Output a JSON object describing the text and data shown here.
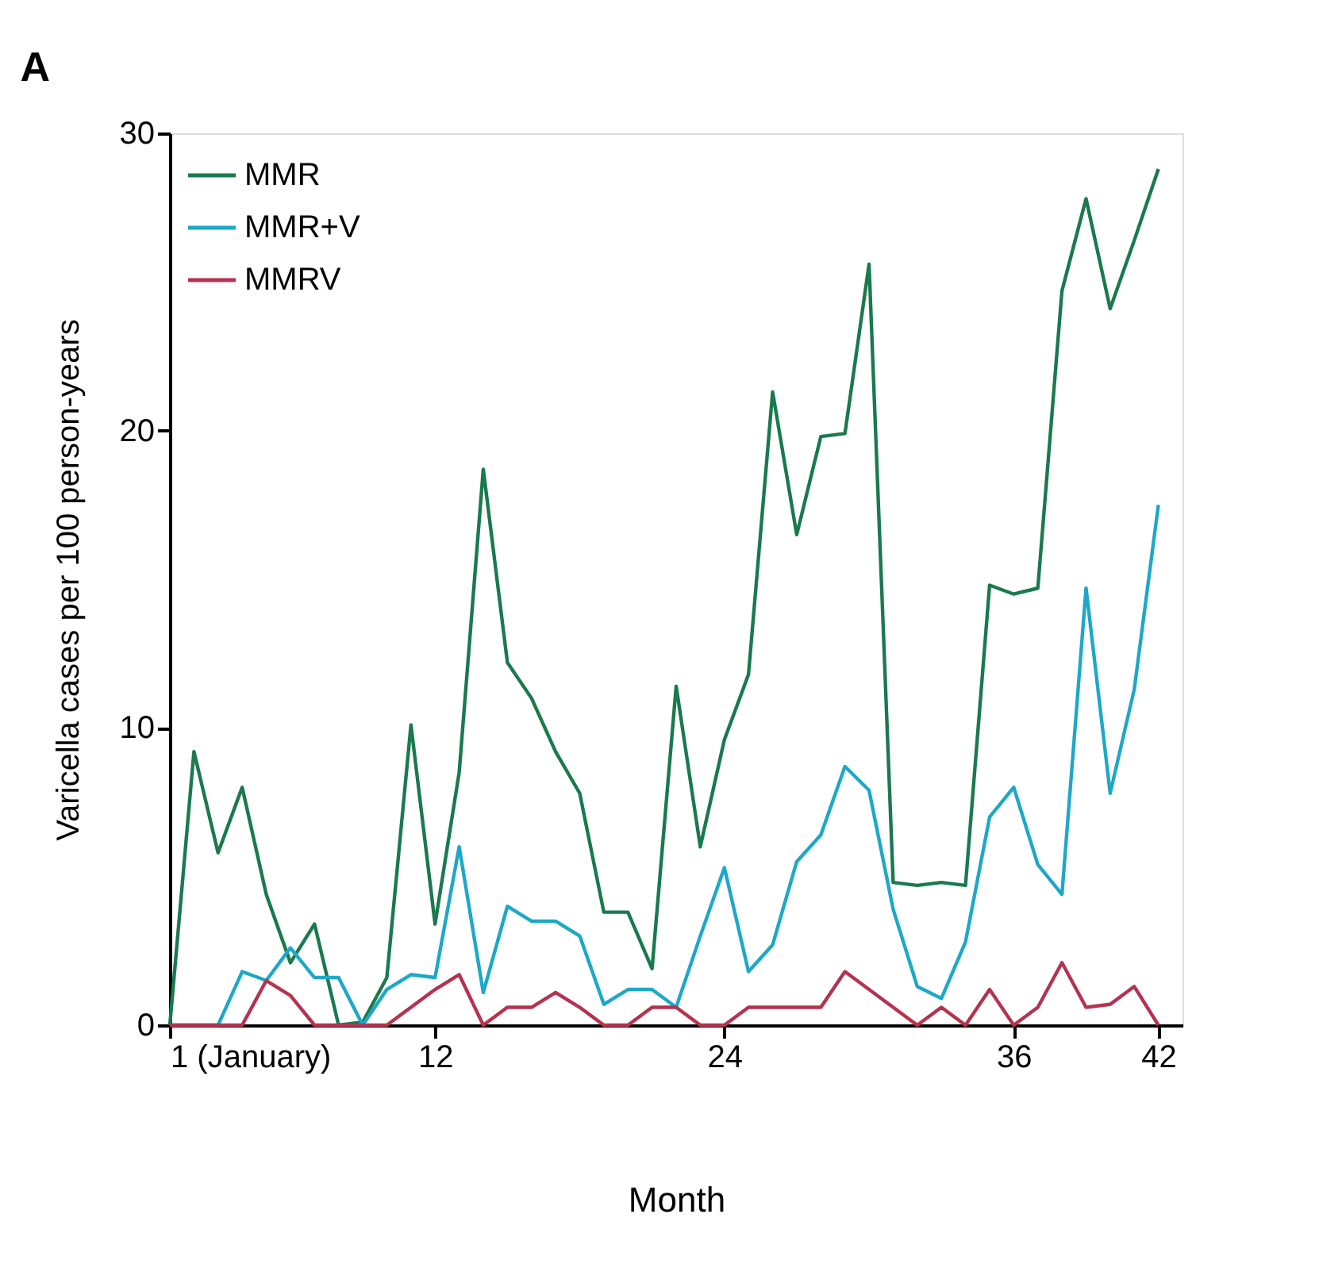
{
  "chart_data": {
    "type": "line",
    "title": "A",
    "xlabel": "Month",
    "ylabel": "Varicella cases per 100 person-years",
    "x": [
      1,
      2,
      3,
      4,
      5,
      6,
      7,
      8,
      9,
      10,
      11,
      12,
      13,
      14,
      15,
      16,
      17,
      18,
      19,
      20,
      21,
      22,
      23,
      24,
      25,
      26,
      27,
      28,
      29,
      30,
      31,
      32,
      33,
      34,
      35,
      36,
      37,
      38,
      39,
      40,
      41,
      42
    ],
    "series": [
      {
        "name": "MMR",
        "color": "#1a7a4e",
        "values": [
          0,
          9.2,
          5.8,
          8.0,
          4.4,
          2.1,
          3.4,
          0,
          0.1,
          1.6,
          10.1,
          3.4,
          8.5,
          18.7,
          12.2,
          11.0,
          9.2,
          7.8,
          3.8,
          3.8,
          1.9,
          11.4,
          6.0,
          9.6,
          11.8,
          21.3,
          16.5,
          19.8,
          19.9,
          25.6,
          4.8,
          4.7,
          4.8,
          4.7,
          14.8,
          14.5,
          14.7,
          24.7,
          27.8,
          24.1,
          26.4,
          28.8
        ]
      },
      {
        "name": "MMR+V",
        "color": "#1ea8c8",
        "values": [
          0,
          0,
          0,
          1.8,
          1.5,
          2.6,
          1.6,
          1.6,
          0,
          1.2,
          1.7,
          1.6,
          6.0,
          1.1,
          4.0,
          3.5,
          3.5,
          3.0,
          0.7,
          1.2,
          1.2,
          0.6,
          3.0,
          5.3,
          1.8,
          2.7,
          5.5,
          6.4,
          8.7,
          7.9,
          3.9,
          1.3,
          0.9,
          2.8,
          7.0,
          8.0,
          5.4,
          4.4,
          14.7,
          7.8,
          11.3,
          17.5
        ]
      },
      {
        "name": "MMRV",
        "color": "#b5334f",
        "values": [
          0,
          0,
          0,
          0,
          1.5,
          1.0,
          0,
          0,
          0,
          0,
          0.6,
          1.2,
          1.7,
          0,
          0.6,
          0.6,
          1.1,
          0.6,
          0,
          0,
          0.6,
          0.6,
          0,
          0,
          0.6,
          0.6,
          0.6,
          0.6,
          1.8,
          1.2,
          0.6,
          0,
          0.6,
          0,
          1.2,
          0,
          0.6,
          2.1,
          0.6,
          0.7,
          1.3,
          0
        ]
      }
    ],
    "xlim": [
      1,
      43
    ],
    "xticks": [
      {
        "value": 1,
        "label": "1 (January)"
      },
      12,
      24,
      36,
      42
    ],
    "ylim": [
      0,
      30
    ],
    "yticks": [
      0,
      10,
      20,
      30
    ],
    "grid": false,
    "legend": "top left",
    "marker": "none",
    "line_style": "solid"
  }
}
